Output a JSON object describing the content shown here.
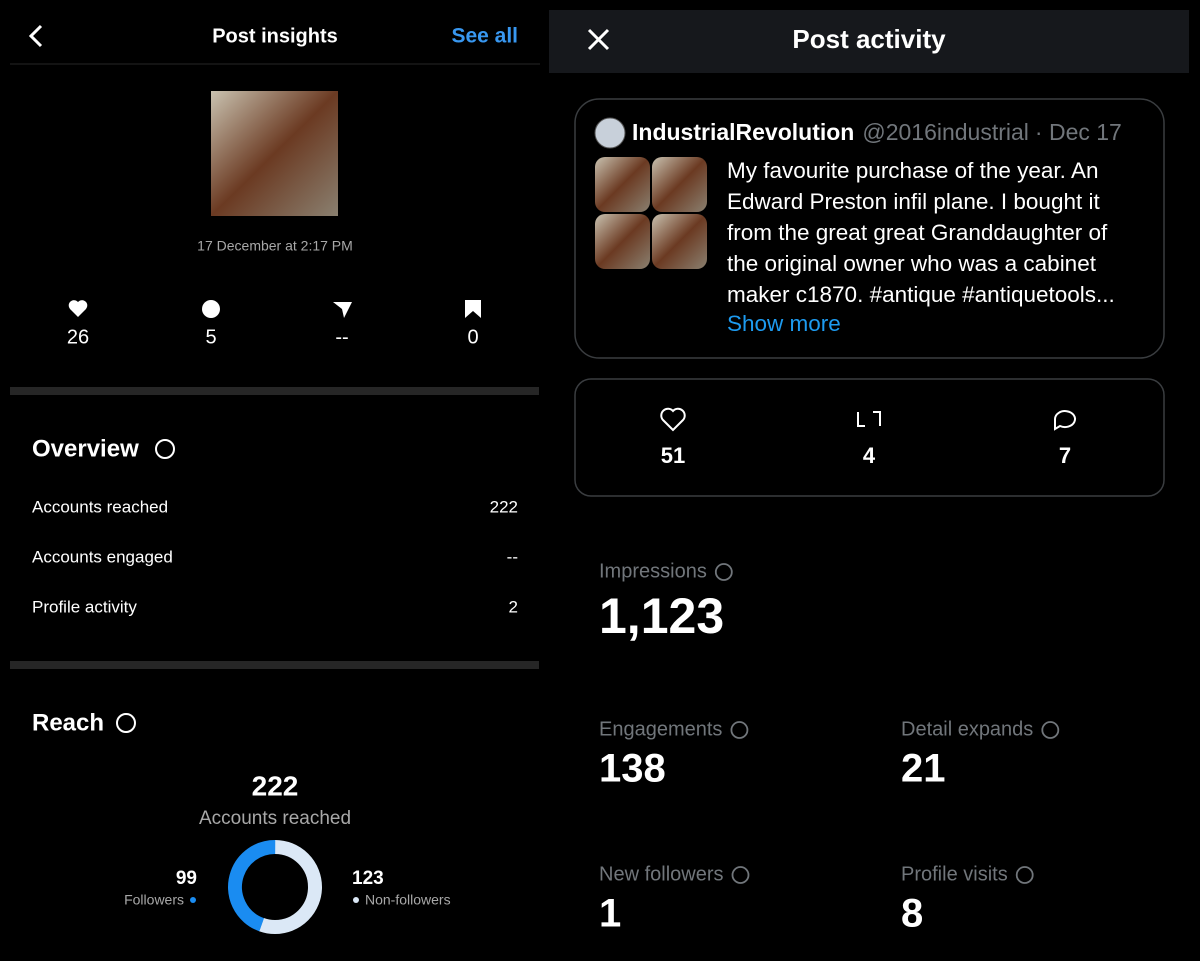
{
  "left": {
    "header": {
      "title": "Post insights",
      "action": "See all"
    },
    "post_date": "17 December at 2:17 PM",
    "stats": [
      "26",
      "5",
      "--",
      "0"
    ],
    "overview": {
      "title": "Overview",
      "rows": [
        [
          "Accounts reached",
          "222"
        ],
        [
          "Accounts engaged",
          "--"
        ],
        [
          "Profile activity",
          "2"
        ]
      ]
    },
    "reach": {
      "title": "Reach",
      "total": "222",
      "total_label": "Accounts reached",
      "followers": {
        "value": 99,
        "label": "Followers"
      },
      "non_followers": {
        "value": 123,
        "label": "Non-followers"
      }
    }
  },
  "right": {
    "header": {
      "title": "Post activity"
    },
    "post": {
      "author": "IndustrialRevolution",
      "handle": "@2016industrial",
      "date": "· Dec 17",
      "text_lines": [
        "My favourite purchase of the year. An",
        "Edward Preston infil plane. I bought it",
        "from the great great Granddaughter of",
        "the original owner who was a cabinet",
        "maker c1870. #antique #antiquetools..."
      ],
      "show_more": "Show more"
    },
    "engagement": [
      "51",
      "4",
      "7"
    ],
    "metrics": [
      {
        "label": "Impressions",
        "value": "1,123"
      },
      {
        "label": "Engagements",
        "value": "138"
      },
      {
        "label": "Detail expands",
        "value": "21"
      },
      {
        "label": "New followers",
        "value": "1"
      },
      {
        "label": "Profile visits",
        "value": "8"
      }
    ]
  }
}
